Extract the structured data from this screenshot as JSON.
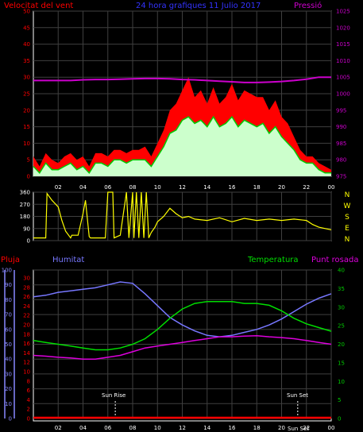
{
  "colors": {
    "background": "#000000",
    "frame": "#ffffff",
    "grid": "#3f3f3f",
    "wind_gust": "#ff0000",
    "wind_avg": "#00cc00",
    "wind_fill": "#ccffcc",
    "pressure": "#cc00cc",
    "direction": "#ffff00",
    "title": "#3333ff",
    "humidity": "#7777ff",
    "temperature": "#00dd00",
    "dew_point": "#dd00dd",
    "rain": "#ff0000",
    "humidity_axis": "#8888ff",
    "temp_axis": "#00cc00",
    "sun_label": "#ffffff"
  },
  "chart_data": [
    {
      "type": "area",
      "title": "24 hora grafiques  11 Julio 2017",
      "left_label": "Velocitat del vent",
      "right_label": "Pressió",
      "x_ticks": [
        "02",
        "04",
        "06",
        "08",
        "10",
        "12",
        "14",
        "16",
        "18",
        "20",
        "22",
        "00"
      ],
      "y_left_ticks": [
        "0",
        "5",
        "10",
        "15",
        "20",
        "25",
        "30",
        "35",
        "40",
        "45",
        "50"
      ],
      "y_left_range": [
        0,
        50
      ],
      "y_right_ticks": [
        "975",
        "980",
        "985",
        "990",
        "995",
        "1000",
        "1005",
        "1010",
        "1015",
        "1020",
        "1025"
      ],
      "y_right_range": [
        975,
        1025
      ],
      "x_range_hours": [
        0,
        24
      ],
      "series": [
        {
          "series_key": "gust",
          "x": [
            0,
            0.5,
            1,
            1.5,
            2,
            2.5,
            3,
            3.5,
            4,
            4.5,
            5,
            5.5,
            6,
            6.5,
            7,
            7.5,
            8,
            8.5,
            9,
            9.5,
            10,
            10.5,
            11,
            11.5,
            12,
            12.5,
            13,
            13.5,
            14,
            14.5,
            15,
            15.5,
            16,
            16.5,
            17,
            17.5,
            18,
            18.5,
            19,
            19.5,
            20,
            20.5,
            21,
            21.5,
            22,
            22.5,
            23,
            23.5,
            24
          ],
          "values": [
            6,
            3,
            7,
            5,
            4,
            6,
            7,
            5,
            6,
            3,
            7,
            7,
            6,
            8,
            8,
            7,
            8,
            8,
            9,
            6,
            10,
            14,
            20,
            22,
            26,
            30,
            24,
            26,
            22,
            27,
            22,
            24,
            28,
            23,
            26,
            25,
            24,
            24,
            20,
            23,
            18,
            16,
            12,
            8,
            6,
            6,
            4,
            3,
            2
          ]
        },
        {
          "series_key": "average",
          "x": [
            0,
            0.5,
            1,
            1.5,
            2,
            2.5,
            3,
            3.5,
            4,
            4.5,
            5,
            5.5,
            6,
            6.5,
            7,
            7.5,
            8,
            8.5,
            9,
            9.5,
            10,
            10.5,
            11,
            11.5,
            12,
            12.5,
            13,
            13.5,
            14,
            14.5,
            15,
            15.5,
            16,
            16.5,
            17,
            17.5,
            18,
            18.5,
            19,
            19.5,
            20,
            20.5,
            21,
            21.5,
            22,
            22.5,
            23,
            23.5,
            24
          ],
          "values": [
            3,
            1,
            4,
            2,
            2,
            3,
            4,
            2,
            3,
            1,
            4,
            4,
            3,
            5,
            5,
            4,
            5,
            5,
            5,
            3,
            6,
            9,
            13,
            14,
            17,
            18,
            16,
            17,
            15,
            18,
            15,
            16,
            18,
            15,
            17,
            16,
            15,
            16,
            13,
            15,
            12,
            10,
            8,
            5,
            4,
            4,
            2,
            1,
            1
          ]
        },
        {
          "series_key": "pressure",
          "x": [
            0,
            1,
            2,
            3,
            4,
            5,
            6,
            7,
            8,
            9,
            10,
            11,
            12,
            13,
            14,
            15,
            16,
            17,
            18,
            19,
            20,
            21,
            22,
            23,
            24
          ],
          "values": [
            1004,
            1004,
            1004,
            1004,
            1004.2,
            1004.3,
            1004.3,
            1004.4,
            1004.5,
            1004.6,
            1004.6,
            1004.5,
            1004.3,
            1004.2,
            1004,
            1003.8,
            1003.6,
            1003.4,
            1003.4,
            1003.5,
            1003.7,
            1004,
            1004.4,
            1005,
            1005
          ]
        }
      ]
    },
    {
      "type": "line",
      "right_label": "N W S E N",
      "x_ticks": [
        "02",
        "04",
        "06",
        "08",
        "10",
        "12",
        "14",
        "16",
        "18",
        "20",
        "22",
        "00"
      ],
      "y_left_ticks": [
        "0",
        "90",
        "180",
        "270",
        "360"
      ],
      "y_range": [
        0,
        360
      ],
      "x_range_hours": [
        0,
        24
      ],
      "series": [
        {
          "series_key": "direction",
          "x": [
            0,
            1,
            1.1,
            1.5,
            2,
            2.3,
            2.6,
            3,
            3.1,
            3.6,
            4,
            4.2,
            4.5,
            4.6,
            5,
            5.8,
            6,
            6.4,
            6.5,
            7,
            7.5,
            7.7,
            8,
            8.1,
            8.3,
            8.5,
            8.7,
            8.9,
            9.1,
            9.3,
            9.5,
            9.8,
            10,
            10.5,
            11,
            11.5,
            12,
            12.5,
            13,
            14,
            15,
            16,
            17,
            18,
            19,
            20,
            21,
            22,
            22.5,
            23,
            24
          ],
          "values": [
            20,
            20,
            350,
            300,
            250,
            150,
            70,
            20,
            40,
            40,
            200,
            300,
            30,
            20,
            20,
            20,
            360,
            360,
            20,
            40,
            360,
            20,
            360,
            20,
            360,
            20,
            360,
            20,
            360,
            20,
            60,
            100,
            140,
            180,
            240,
            200,
            170,
            180,
            160,
            150,
            170,
            140,
            165,
            150,
            160,
            150,
            160,
            150,
            120,
            100,
            80
          ]
        }
      ]
    },
    {
      "type": "line",
      "labels": {
        "rain": "Pluja",
        "humidity": "Humitat",
        "temperature": "Temperatura",
        "dew_point": "Punt rosada",
        "sun_rise": "Sun Rise",
        "sun_set": "Sun Set",
        "sun_set_2": "Sun Set"
      },
      "x_ticks": [
        "02",
        "04",
        "06",
        "08",
        "10",
        "12",
        "14",
        "16",
        "18",
        "20",
        "22",
        "00"
      ],
      "humidity_ticks": [
        "0",
        "10",
        "20",
        "30",
        "40",
        "50",
        "60",
        "70",
        "80",
        "90",
        "100"
      ],
      "rain_ticks": [
        "0",
        "2",
        "4",
        "6",
        "8",
        "10",
        "12",
        "14",
        "16",
        "18",
        "20",
        "22",
        "24",
        "26",
        "28",
        "30"
      ],
      "temp_ticks": [
        "0",
        "5",
        "10",
        "15",
        "20",
        "25",
        "30",
        "35",
        "40"
      ],
      "humidity_range": [
        0,
        100
      ],
      "temperature_range": [
        0,
        40
      ],
      "x_range_hours": [
        0,
        24
      ],
      "sun_rise_hour": 6.6,
      "sun_set_hour": 21.3,
      "series": [
        {
          "series_key": "humidity",
          "x": [
            0,
            1,
            2,
            3,
            4,
            5,
            6,
            7,
            8,
            9,
            10,
            11,
            12,
            13,
            14,
            15,
            16,
            17,
            18,
            19,
            20,
            21,
            22,
            23,
            24
          ],
          "values": [
            82,
            83,
            85,
            86,
            87,
            88,
            90,
            92,
            91,
            84,
            76,
            68,
            63,
            59,
            56,
            55,
            56,
            58,
            60,
            63,
            67,
            72,
            77,
            81,
            84
          ]
        },
        {
          "series_key": "temperature",
          "x": [
            0,
            1,
            2,
            3,
            4,
            5,
            6,
            7,
            8,
            9,
            10,
            11,
            12,
            13,
            14,
            15,
            16,
            17,
            18,
            19,
            20,
            21,
            22,
            23,
            24
          ],
          "values": [
            21,
            20.5,
            20,
            19.5,
            19,
            18.5,
            18.5,
            19,
            20,
            21.5,
            24,
            27,
            29.5,
            31,
            31.5,
            31.5,
            31.5,
            31,
            31,
            30.5,
            29,
            27,
            25.5,
            24.5,
            23.5
          ]
        },
        {
          "series_key": "dew_point",
          "x": [
            0,
            1,
            2,
            3,
            4,
            5,
            6,
            7,
            8,
            9,
            10,
            11,
            12,
            13,
            14,
            15,
            16,
            17,
            18,
            19,
            20,
            21,
            22,
            23,
            24
          ],
          "values": [
            17,
            16.8,
            16.5,
            16.3,
            16,
            16,
            16.5,
            17,
            18,
            19,
            19.5,
            20,
            20.5,
            21,
            21.5,
            22,
            22,
            22.2,
            22.3,
            22,
            21.8,
            21.5,
            21,
            20.5,
            20
          ]
        },
        {
          "series_key": "rain",
          "x": [
            0,
            24
          ],
          "values": [
            0,
            0
          ]
        }
      ]
    }
  ]
}
